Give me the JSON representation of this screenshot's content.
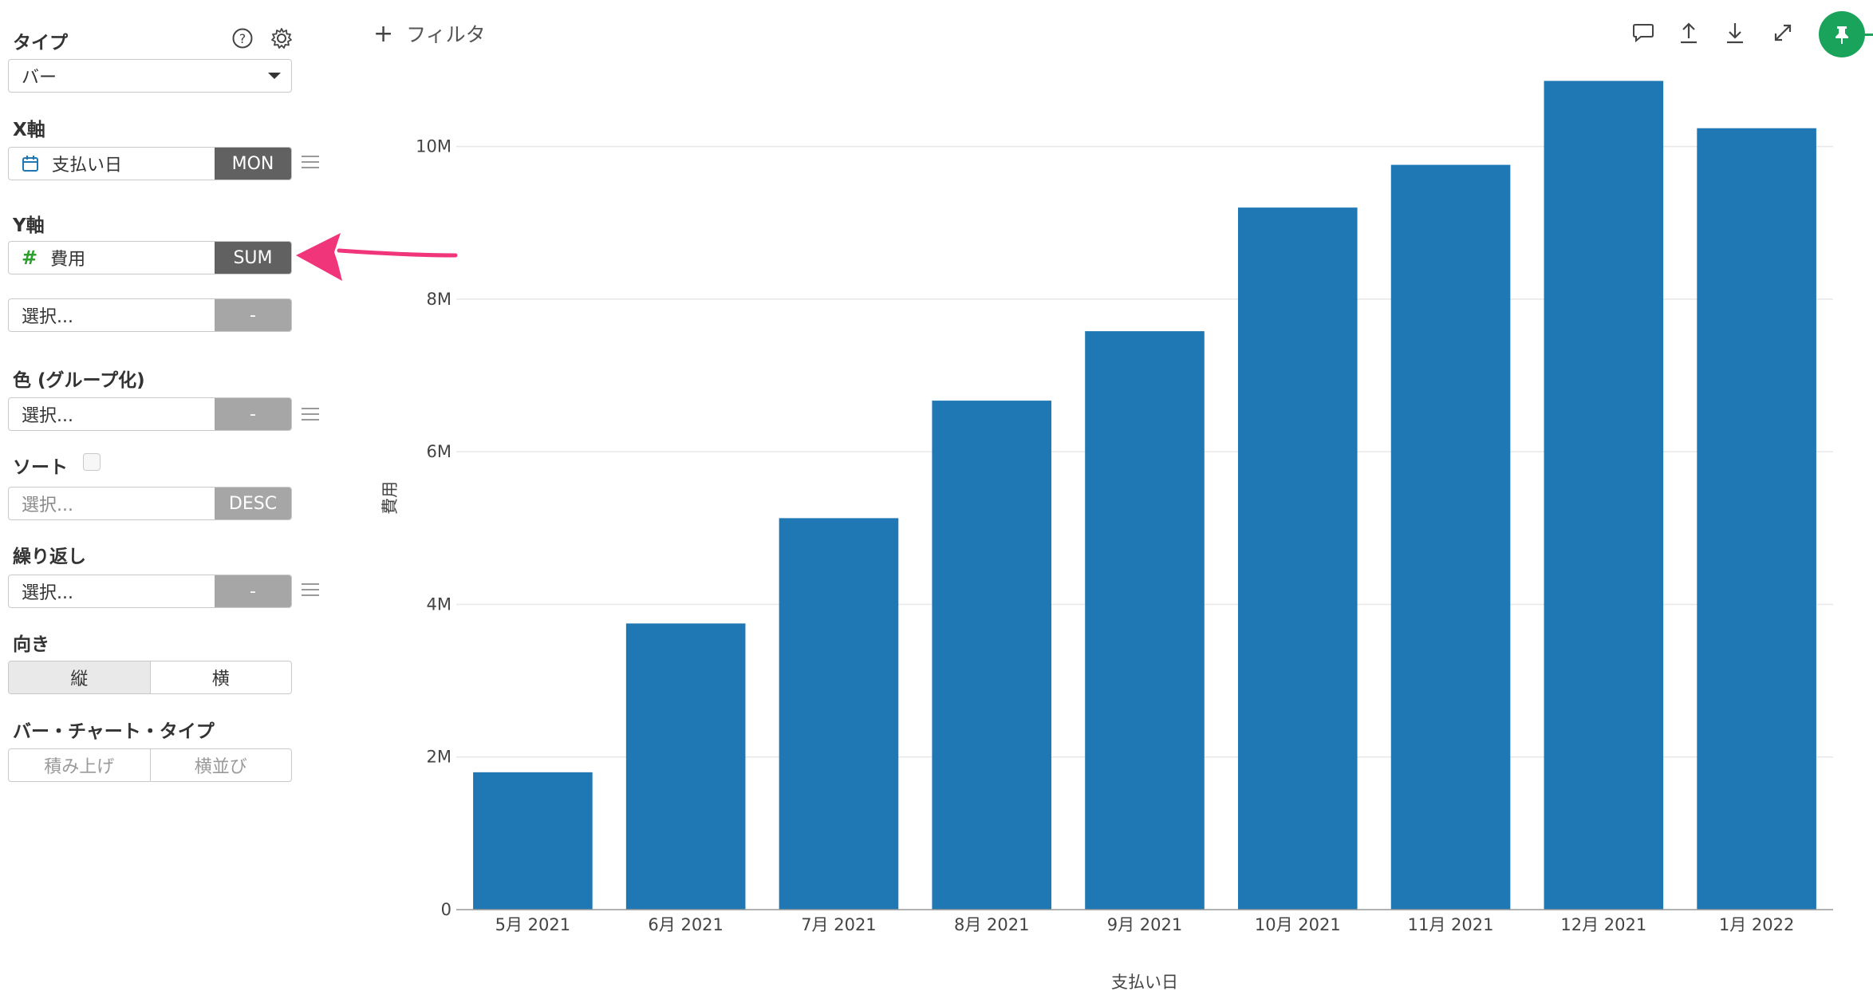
{
  "sidebar": {
    "type_label": "タイプ",
    "type_value": "バー",
    "x_axis_label": "X軸",
    "x_field": "支払い日",
    "x_agg": "MON",
    "y_axis_label": "Y軸",
    "y_field": "費用",
    "y_agg": "SUM",
    "y2_placeholder": "選択...",
    "y2_agg": "-",
    "color_label": "色 (グループ化)",
    "color_placeholder": "選択...",
    "color_agg": "-",
    "sort_label": "ソート",
    "sort_placeholder": "選択...",
    "sort_agg": "DESC",
    "repeat_label": "繰り返し",
    "repeat_placeholder": "選択...",
    "repeat_agg": "-",
    "direction_label": "向き",
    "direction_options": [
      "縦",
      "横"
    ],
    "bar_type_label": "バー・チャート・タイプ",
    "bar_type_options": [
      "積み上げ",
      "横並び"
    ]
  },
  "toolbar": {
    "filter_label": "フィルタ",
    "icons": [
      "comment-icon",
      "upload-icon",
      "download-icon",
      "expand-icon",
      "pin-icon"
    ],
    "pin_color": "#1aa35b"
  },
  "chart_data": {
    "type": "bar",
    "categories": [
      "5月 2021",
      "6月 2021",
      "7月 2021",
      "8月 2021",
      "9月 2021",
      "10月 2021",
      "11月 2021",
      "12月 2021",
      "1月 2022"
    ],
    "values": [
      1800000,
      3750000,
      5130000,
      6670000,
      7580000,
      9200000,
      9760000,
      10860000,
      10240000
    ],
    "xlabel": "支払い日",
    "ylabel": "費用",
    "ylim": [
      0,
      11000000
    ],
    "yticks": [
      0,
      2000000,
      4000000,
      6000000,
      8000000,
      10000000
    ],
    "ytick_labels": [
      "0",
      "2M",
      "4M",
      "6M",
      "8M",
      "10M"
    ],
    "bar_color": "#1f77b4",
    "grid": true
  }
}
